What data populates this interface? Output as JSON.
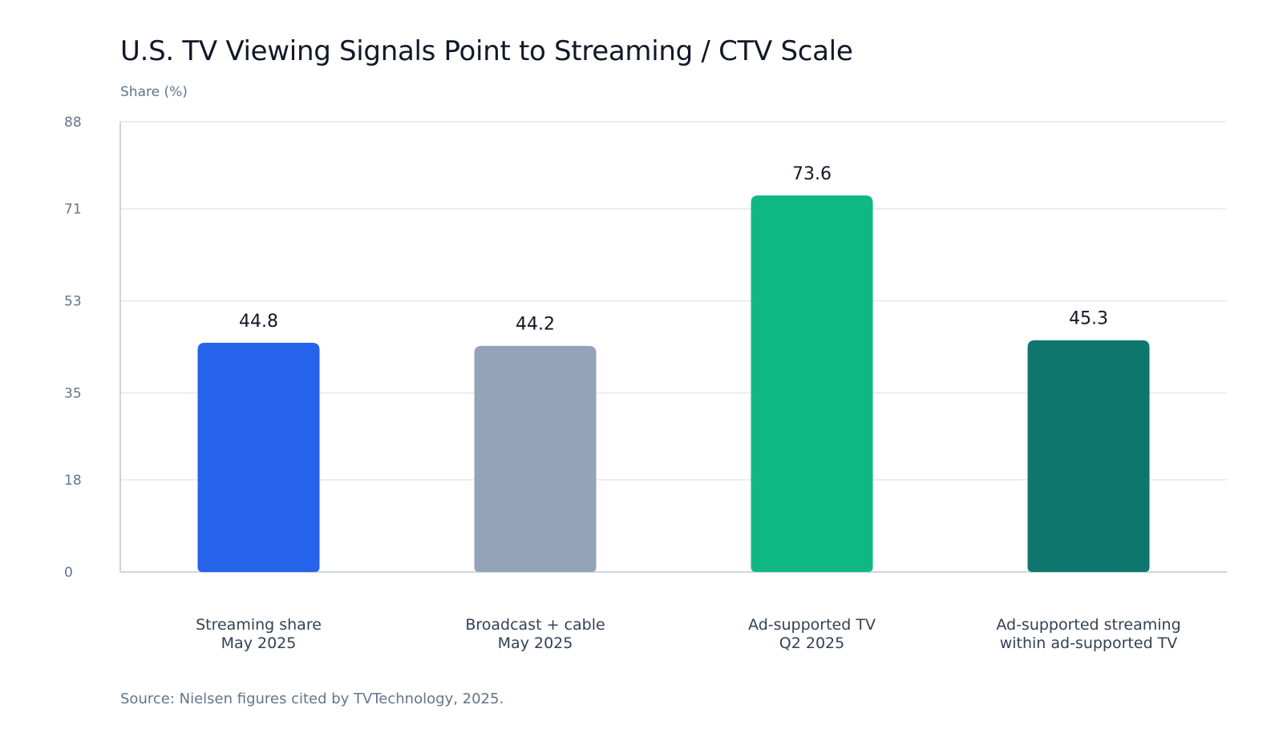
{
  "title": "U.S. TV Viewing Signals Point to Streaming / CTV Scale",
  "source": "Source: Nielsen figures cited by TVTechnology, 2025.",
  "chart_data": {
    "type": "bar",
    "title": "U.S. TV Viewing Signals Point to Streaming / CTV Scale",
    "xlabel": "",
    "ylabel": "Share (%)",
    "ylim": [
      0,
      88
    ],
    "yticks": [
      0,
      18,
      35,
      53,
      71,
      88
    ],
    "grid": true,
    "legend": "none",
    "categories": [
      [
        "Streaming share",
        "May 2025"
      ],
      [
        "Broadcast + cable",
        "May 2025"
      ],
      [
        "Ad-supported TV",
        "Q2 2025"
      ],
      [
        "Ad-supported streaming",
        "within ad-supported TV"
      ]
    ],
    "values": [
      44.8,
      44.2,
      73.6,
      45.3
    ],
    "value_labels": [
      "44.8",
      "44.2",
      "73.6",
      "45.3"
    ],
    "colors": [
      "#2563eb",
      "#94a3b8",
      "#10b981",
      "#0f766e"
    ]
  },
  "colors": {
    "grid": "#e2e8f0",
    "axis": "#cbd5e1",
    "tick_text": "#64748b",
    "title_text": "#111827"
  }
}
